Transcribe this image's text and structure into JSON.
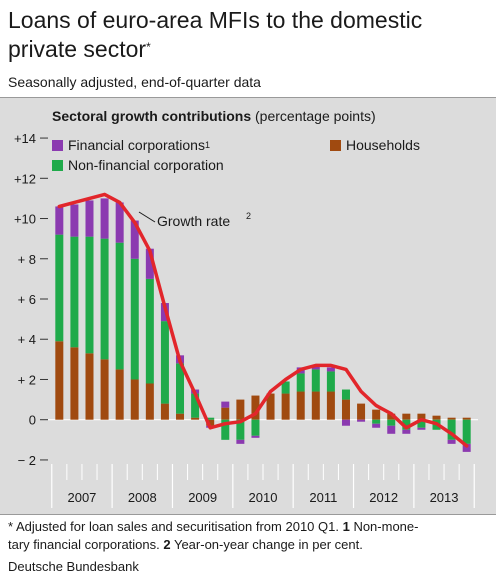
{
  "title": "Loans of euro-area MFIs to the domestic private sector",
  "title_mark": "*",
  "subtitle": "Seasonally adjusted, end-of-quarter data",
  "panel_title_main": "Sectoral growth contributions",
  "panel_title_sub": "(percentage points)",
  "footnote_text": "* Adjusted for loan sales and securitisation from 2010 Q1. 1 Non-monetary financial corporations. 2 Year-on-year change in per cent.",
  "footnote_parts": {
    "a": "* Adjusted for loan sales and securitisation from 2010 Q1. ",
    "b": "1",
    "c": " Non-mone-",
    "d": "tary financial corporations. ",
    "e": "2",
    "f": " Year-on-year change in per cent."
  },
  "source": "Deutsche Bundesbank",
  "colors": {
    "financial": "#8b3ab0",
    "nonfinancial": "#1faa4a",
    "households": "#a04a10",
    "growth": "#e2262b",
    "panel": "#dcdcdc"
  },
  "chart_data": {
    "type": "bar",
    "stacked": true,
    "ylim": [
      -2.5,
      14.5
    ],
    "yticks": [
      {
        "v": 14,
        "label": "+14"
      },
      {
        "v": 12,
        "label": "+12"
      },
      {
        "v": 10,
        "label": "+10"
      },
      {
        "v": 8,
        "label": "+ 8"
      },
      {
        "v": 6,
        "label": "+ 6"
      },
      {
        "v": 4,
        "label": "+ 4"
      },
      {
        "v": 2,
        "label": "+ 2"
      },
      {
        "v": 0,
        "label": "0"
      },
      {
        "v": -2,
        "label": "− 2"
      }
    ],
    "years": [
      "2007",
      "2008",
      "2009",
      "2010",
      "2011",
      "2012",
      "2013"
    ],
    "quarters_per_year": 4,
    "quarters": [
      "2007Q1",
      "2007Q2",
      "2007Q3",
      "2007Q4",
      "2008Q1",
      "2008Q2",
      "2008Q3",
      "2008Q4",
      "2009Q1",
      "2009Q2",
      "2009Q3",
      "2009Q4",
      "2010Q1",
      "2010Q2",
      "2010Q3",
      "2010Q4",
      "2011Q1",
      "2011Q2",
      "2011Q3",
      "2011Q4",
      "2012Q1",
      "2012Q2",
      "2012Q3",
      "2012Q4",
      "2013Q1",
      "2013Q2",
      "2013Q3",
      "2013Q4"
    ],
    "series": [
      {
        "name": "Households",
        "key": "households",
        "values": [
          3.9,
          3.6,
          3.3,
          3.0,
          2.5,
          2.0,
          1.8,
          0.8,
          0.3,
          0.1,
          -0.3,
          0.6,
          1.0,
          1.2,
          1.3,
          1.3,
          1.4,
          1.4,
          1.4,
          1.0,
          0.8,
          0.5,
          0.3,
          0.3,
          0.3,
          0.2,
          0.1,
          0.1
        ]
      },
      {
        "name": "Non-financial corporation",
        "key": "nonfinancial",
        "values": [
          5.3,
          5.5,
          5.8,
          6.0,
          6.3,
          6.0,
          5.2,
          4.1,
          2.5,
          1.2,
          0.1,
          -1.0,
          -1.0,
          -0.8,
          0.0,
          0.6,
          0.9,
          1.1,
          1.0,
          0.5,
          0.0,
          -0.2,
          -0.3,
          -0.5,
          -0.4,
          -0.5,
          -1.0,
          -1.2
        ]
      },
      {
        "name": "Financial corporations",
        "key": "financial",
        "note": "1",
        "values": [
          1.4,
          1.6,
          1.8,
          2.0,
          2.0,
          1.9,
          1.5,
          0.9,
          0.4,
          0.2,
          -0.1,
          0.3,
          -0.2,
          -0.1,
          0.0,
          0.0,
          0.3,
          0.2,
          0.2,
          -0.3,
          -0.1,
          -0.2,
          -0.4,
          -0.2,
          -0.1,
          0.0,
          -0.2,
          -0.4
        ]
      },
      {
        "name": "Growth rate",
        "key": "growth",
        "note": "2",
        "kind": "line",
        "values": [
          10.6,
          10.8,
          11.0,
          11.2,
          10.8,
          9.8,
          8.4,
          5.6,
          2.9,
          1.3,
          -0.4,
          -0.2,
          -0.1,
          0.3,
          1.4,
          2.0,
          2.5,
          2.7,
          2.7,
          2.5,
          1.4,
          0.7,
          0.3,
          -0.4,
          0.0,
          -0.2,
          -0.7,
          -1.3
        ]
      }
    ],
    "legend": [
      {
        "key": "financial",
        "label": "Financial corporations",
        "note": "1"
      },
      {
        "key": "nonfinancial",
        "label": "Non-financial corporation",
        "note": ""
      },
      {
        "key": "households",
        "label": "Households",
        "note": ""
      }
    ],
    "growth_label": "Growth rate",
    "growth_label_note": "2",
    "grid": false
  }
}
